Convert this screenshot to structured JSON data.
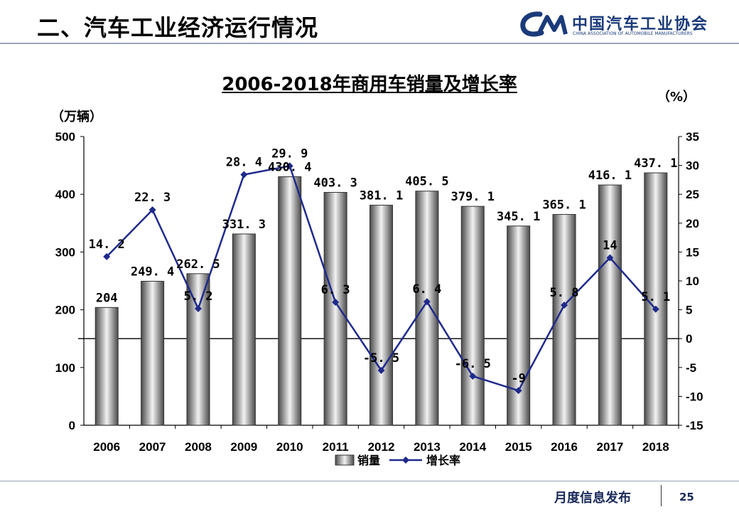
{
  "header": {
    "title": "二、汽车工业经济运行情况"
  },
  "logo": {
    "mark": "CAM",
    "name_cn": "中国汽车工业协会",
    "name_en": "CHINA ASSOCIATION OF AUTOMOBILE MANUFACTURERS"
  },
  "footer": {
    "text": "月度信息发布",
    "page": "25"
  },
  "colors": {
    "line": "#1f2a8c",
    "bar_edge": "#333333",
    "rule": "#9aa3b5",
    "brand": "#1a3a7a"
  },
  "chart_data": {
    "type": "bar",
    "title": "2006-2018年商用车销量及增长率",
    "y_left_label": "（万辆）",
    "y_right_label": "（%）",
    "categories": [
      "2006",
      "2007",
      "2008",
      "2009",
      "2010",
      "2011",
      "2012",
      "2013",
      "2014",
      "2015",
      "2016",
      "2017",
      "2018"
    ],
    "ylim_left": [
      0,
      500
    ],
    "ylim_right": [
      -15,
      35
    ],
    "yticks_left": [
      "0",
      "100",
      "200",
      "300",
      "400",
      "500"
    ],
    "yticks_right": [
      "-15",
      "-10",
      "-5",
      "0",
      "5",
      "10",
      "15",
      "20",
      "25",
      "30",
      "35"
    ],
    "series": [
      {
        "name": "销量",
        "type": "bar",
        "axis": "left",
        "values": [
          204,
          249.4,
          262.5,
          331.3,
          430.4,
          403.3,
          381.1,
          405.5,
          379.1,
          345.1,
          365.1,
          416.1,
          437.1
        ],
        "labels": [
          "204",
          "249. 4",
          "262. 5",
          "331. 3",
          "430. 4",
          "403. 3",
          "381. 1",
          "405. 5",
          "379. 1",
          "345. 1",
          "365. 1",
          "416. 1",
          "437. 1"
        ]
      },
      {
        "name": "增长率",
        "type": "line",
        "axis": "right",
        "values": [
          14.2,
          22.3,
          5.2,
          28.4,
          29.9,
          6.3,
          -5.5,
          6.4,
          -6.5,
          -9,
          5.8,
          14,
          5.1
        ],
        "labels": [
          "14. 2",
          "22. 3",
          "5. 2",
          "28. 4",
          "29. 9",
          "6. 3",
          "-5. 5",
          "6. 4",
          "-6. 5",
          "-9",
          "5. 8",
          "14",
          "5. 1"
        ]
      }
    ],
    "legend": "bottom",
    "grid": false
  }
}
